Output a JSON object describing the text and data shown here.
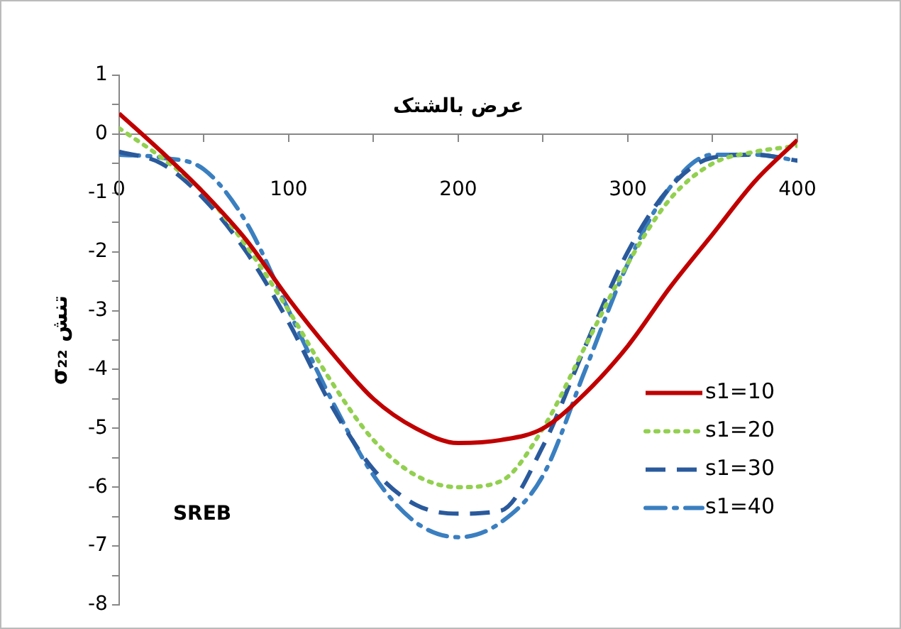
{
  "chart_data": {
    "type": "line",
    "xlabel": "عرض بالشتک",
    "ylabel": "تنش σ₂₂",
    "annotations": [
      "SREB"
    ],
    "x": [
      0,
      25,
      50,
      75,
      100,
      125,
      150,
      175,
      200,
      225,
      250,
      275,
      300,
      325,
      350,
      375,
      400
    ],
    "xlim": [
      0,
      400
    ],
    "xticks": [
      0,
      {
        "value": 50,
        "label": null
      },
      100,
      {
        "value": 150,
        "label": null
      },
      200,
      {
        "value": 250,
        "label": null
      },
      300,
      {
        "value": 350,
        "label": null
      },
      400
    ],
    "ylim": [
      -8,
      1
    ],
    "yticks": [
      -8,
      {
        "value": -7.5,
        "label": null
      },
      -7,
      {
        "value": -6.5,
        "label": null
      },
      -6,
      {
        "value": -5.5,
        "label": null
      },
      -5,
      {
        "value": -4.5,
        "label": null
      },
      -4,
      {
        "value": -3.5,
        "label": null
      },
      -3,
      {
        "value": -2.5,
        "label": null
      },
      -2,
      {
        "value": -1.5,
        "label": null
      },
      -1,
      {
        "value": -0.5,
        "label": null
      },
      0,
      {
        "value": 0.5,
        "label": null
      },
      1
    ],
    "grid": false,
    "legend": "right",
    "marker": "none",
    "series": [
      {
        "name": "s1=10",
        "color": "#c00000",
        "line_style": "solid",
        "values": [
          0.35,
          -0.3,
          -1.0,
          -1.8,
          -2.8,
          -3.7,
          -4.5,
          -5.0,
          -5.25,
          -5.2,
          -5.0,
          -4.4,
          -3.6,
          -2.6,
          -1.7,
          -0.8,
          -0.1
        ]
      },
      {
        "name": "s1=20",
        "color": "#92d050",
        "line_style": "dotted",
        "values": [
          0.1,
          -0.4,
          -1.0,
          -1.9,
          -3.0,
          -4.2,
          -5.2,
          -5.8,
          -6.0,
          -5.9,
          -5.0,
          -3.6,
          -2.2,
          -1.1,
          -0.5,
          -0.3,
          -0.2
        ]
      },
      {
        "name": "s1=30",
        "color": "#2a5a9c",
        "line_style": "dashed",
        "values": [
          -0.3,
          -0.5,
          -1.1,
          -2.0,
          -3.2,
          -4.6,
          -5.7,
          -6.3,
          -6.45,
          -6.4,
          -5.3,
          -3.6,
          -2.0,
          -0.9,
          -0.4,
          -0.35,
          -0.45
        ]
      },
      {
        "name": "s1=40",
        "color": "#3a7fc0",
        "line_style": "dashdot",
        "values": [
          -0.35,
          -0.4,
          -0.6,
          -1.5,
          -3.0,
          -4.5,
          -5.8,
          -6.6,
          -6.85,
          -6.6,
          -5.8,
          -4.0,
          -2.2,
          -0.9,
          -0.35,
          -0.35,
          -0.45
        ]
      }
    ]
  }
}
